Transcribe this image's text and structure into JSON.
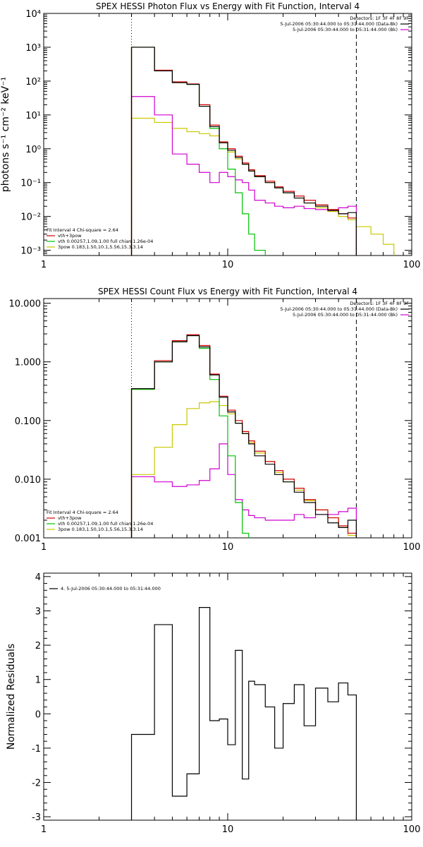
{
  "chart_data": [
    {
      "type": "line",
      "title": "SPEX HESSI Photon Flux vs Energy with Fit Function, Interval 4",
      "ylabel": "photons s⁻¹ cm⁻² keV⁻¹",
      "xlabel": "",
      "xscale": "log",
      "yscale": "log",
      "xlim": [
        1,
        100
      ],
      "ylim": [
        0.0007,
        10000
      ],
      "xticks": [
        "1",
        "10",
        "100"
      ],
      "yticks": [
        "10⁻³",
        "10⁻²",
        "10⁻¹",
        "10⁰",
        "10¹",
        "10²",
        "10³",
        "10⁴"
      ],
      "ytick_values": [
        0.001,
        0.01,
        0.1,
        1,
        10,
        100,
        1000,
        10000
      ],
      "vlines": [
        {
          "x": 3,
          "style": "dotted"
        },
        {
          "x": 50,
          "style": "dashed"
        }
      ],
      "legend_tr": {
        "header": "Detectors: 1F 3F 4F 8F 9F",
        "items": [
          {
            "label": "5-Jul-2006 05:30:44.000 to 05:31:44.000 (Data-Bk)",
            "color": "#000000"
          },
          {
            "label": "5-Jul-2006 05:30:44.000 to 05:31:44.000 (Bk)",
            "color": "#d000d0"
          }
        ]
      },
      "legend_bl": {
        "header": "Fit Interval  4    Chi-square = 2.64",
        "items": [
          {
            "label": "vth+3pow",
            "color": "#d00000"
          },
          {
            "label": "vth 0.00257,1.09,1.00  full chian 1.26e-04",
            "color": "#00c000"
          },
          {
            "label": "3pow 0.183,1.50,10.1,5.56,15.3,3.14",
            "color": "#c8c800"
          }
        ]
      },
      "edges": [
        3,
        4,
        5,
        6,
        7,
        8,
        9,
        10,
        11,
        12,
        13,
        14,
        16,
        18,
        20,
        23,
        26,
        30,
        35,
        40,
        45,
        50,
        60,
        70,
        80
      ],
      "series": [
        {
          "role": "data",
          "color": "#000000",
          "values": [
            1000,
            200,
            90,
            80,
            18,
            4.5,
            1.5,
            0.9,
            0.55,
            0.35,
            0.22,
            0.15,
            0.1,
            0.07,
            0.05,
            0.035,
            0.025,
            0.02,
            0.015,
            0.012,
            0.013,
            null,
            null,
            null
          ]
        },
        {
          "role": "fit",
          "color": "#d00000",
          "values": [
            1000,
            210,
            95,
            82,
            20,
            5,
            1.6,
            1.0,
            0.6,
            0.38,
            0.24,
            0.16,
            0.11,
            0.075,
            0.055,
            0.04,
            0.03,
            0.022,
            0.016,
            0.012,
            0.009,
            null,
            null,
            null
          ]
        },
        {
          "role": "vth",
          "color": "#00c000",
          "values": [
            1000,
            200,
            90,
            80,
            18,
            4,
            1.0,
            0.25,
            0.05,
            0.012,
            0.003,
            0.001,
            0.0004,
            null,
            null,
            null,
            null,
            null,
            null,
            null,
            null,
            null,
            null,
            null
          ]
        },
        {
          "role": "3pow",
          "color": "#c8c800",
          "values": [
            8,
            6,
            4,
            3.2,
            2.8,
            2.4,
            1.5,
            0.8,
            0.5,
            0.35,
            0.22,
            0.15,
            0.1,
            0.07,
            0.05,
            0.035,
            0.025,
            0.018,
            0.014,
            0.01,
            0.008,
            0.005,
            0.003,
            0.0015
          ]
        },
        {
          "role": "bk",
          "color": "#d000d0",
          "values": [
            35,
            10,
            0.7,
            0.35,
            0.2,
            0.1,
            0.2,
            0.15,
            0.12,
            0.1,
            0.06,
            0.03,
            0.025,
            0.02,
            0.018,
            0.02,
            0.017,
            0.016,
            0.015,
            0.018,
            0.02,
            null,
            null,
            null
          ]
        }
      ]
    },
    {
      "type": "line",
      "title": "SPEX HESSI Count Flux vs Energy with Fit Function, Interval 4",
      "ylabel": "",
      "xlabel": "",
      "xscale": "log",
      "yscale": "log",
      "xlim": [
        1,
        100
      ],
      "ylim": [
        0.001,
        12
      ],
      "xticks": [
        "1",
        "10",
        "100"
      ],
      "yticks": [
        "0.001",
        "0.010",
        "0.100",
        "1.000",
        "10.000"
      ],
      "ytick_values": [
        0.001,
        0.01,
        0.1,
        1,
        10
      ],
      "vlines": [
        {
          "x": 3,
          "style": "dotted"
        },
        {
          "x": 50,
          "style": "dashed"
        }
      ],
      "legend_tr": {
        "header": "Detectors: 1F 3F 4F 8F 9F",
        "items": [
          {
            "label": "5-Jul-2006 05:30:44.000 to 05:31:44.000 (Data-Bk)",
            "color": "#000000"
          },
          {
            "label": "5-Jul-2006 05:30:44.000 to 05:31:44.000 (Bk)",
            "color": "#d000d0"
          }
        ]
      },
      "legend_bl": {
        "header": "Fit Interval  4    Chi-square = 2.64",
        "items": [
          {
            "label": "vth+3pow",
            "color": "#d00000"
          },
          {
            "label": "vth 0.00257,1.09,1.00  full chian 1.26e-04",
            "color": "#00c000"
          },
          {
            "label": "3pow 0.183,1.50,10.1,5.56,15.3,3.14",
            "color": "#c8c800"
          }
        ]
      },
      "edges": [
        3,
        4,
        5,
        6,
        7,
        8,
        9,
        10,
        11,
        12,
        13,
        14,
        16,
        18,
        20,
        23,
        26,
        30,
        35,
        40,
        45,
        50
      ],
      "series": [
        {
          "role": "data",
          "color": "#000000",
          "values": [
            0.35,
            1.0,
            2.2,
            2.8,
            1.8,
            0.6,
            0.25,
            0.14,
            0.09,
            0.06,
            0.04,
            0.025,
            0.018,
            0.012,
            0.009,
            0.006,
            0.004,
            0.0025,
            0.0018,
            0.0015,
            0.002
          ]
        },
        {
          "role": "fit",
          "color": "#d00000",
          "values": [
            0.35,
            1.05,
            2.3,
            2.9,
            1.9,
            0.62,
            0.26,
            0.15,
            0.1,
            0.065,
            0.045,
            0.03,
            0.02,
            0.014,
            0.01,
            0.007,
            0.0045,
            0.003,
            0.0022,
            0.0016,
            0.0012
          ]
        },
        {
          "role": "vth",
          "color": "#00c000",
          "values": [
            0.34,
            1.0,
            2.2,
            2.8,
            1.7,
            0.5,
            0.12,
            0.025,
            0.004,
            0.0012,
            0.0003,
            null,
            null,
            null,
            null,
            null,
            null,
            null,
            null,
            null,
            null
          ]
        },
        {
          "role": "3pow",
          "color": "#c8c800",
          "values": [
            0.012,
            0.035,
            0.085,
            0.16,
            0.2,
            0.21,
            0.18,
            0.13,
            0.09,
            0.06,
            0.042,
            0.028,
            0.02,
            0.013,
            0.009,
            0.0065,
            0.0043,
            0.003,
            0.0022,
            0.0015,
            0.0011
          ]
        },
        {
          "role": "bk",
          "color": "#d000d0",
          "values": [
            0.011,
            0.009,
            0.0075,
            0.008,
            0.0095,
            0.015,
            0.04,
            0.012,
            0.0045,
            0.003,
            0.0024,
            0.0022,
            0.002,
            0.002,
            0.002,
            0.0025,
            0.0022,
            0.0025,
            0.0025,
            0.0028,
            0.0032
          ]
        }
      ]
    },
    {
      "type": "line",
      "title": "",
      "ylabel": "Normalized Residuals",
      "xlabel": "",
      "xscale": "log",
      "yscale": "linear",
      "xlim": [
        1,
        100
      ],
      "ylim": [
        -3.1,
        4.1
      ],
      "xticks": [
        "1",
        "10",
        "100"
      ],
      "yticks": [
        "-3",
        "-2",
        "-1",
        "0",
        "1",
        "2",
        "3",
        "4"
      ],
      "ytick_values": [
        -3,
        -2,
        -1,
        0,
        1,
        2,
        3,
        4
      ],
      "legend_tl": {
        "items": [
          {
            "label": "4.  5-Jul-2006 05:30:44.000 to 05:31:44.000",
            "color": "#000000"
          }
        ]
      },
      "edges": [
        3,
        4,
        5,
        6,
        7,
        8,
        9,
        10,
        11,
        12,
        13,
        14,
        16,
        18,
        20,
        23,
        26,
        30,
        35,
        40,
        45,
        50
      ],
      "series": [
        {
          "role": "residuals",
          "color": "#000000",
          "values": [
            -0.6,
            2.6,
            -2.4,
            -1.75,
            3.1,
            -0.2,
            -0.15,
            -0.9,
            1.85,
            -1.9,
            0.95,
            0.85,
            0.2,
            -1.0,
            0.3,
            0.85,
            -0.35,
            0.75,
            0.35,
            0.9,
            0.55
          ]
        }
      ]
    }
  ]
}
